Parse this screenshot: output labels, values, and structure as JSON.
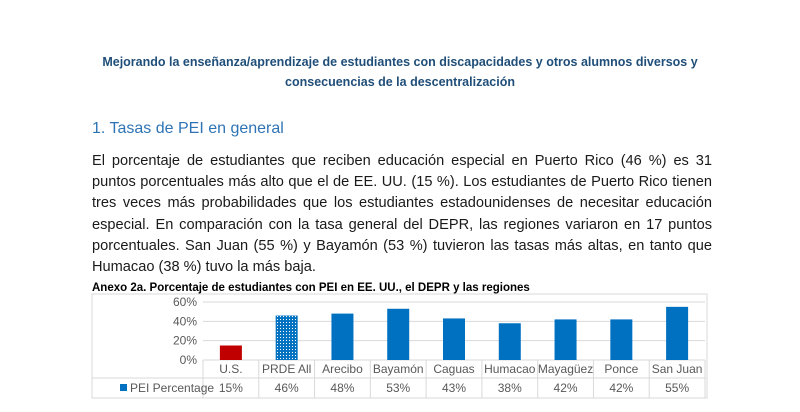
{
  "header": {
    "line1": "Mejorando la enseñanza/aprendizaje de estudiantes con discapacidades y otros alumnos diversos y",
    "line2": "consecuencias de la descentralización"
  },
  "section": {
    "title": "1. Tasas de PEI en general"
  },
  "paragraph": "El porcentaje de estudiantes que reciben educación especial en Puerto Rico (46 %) es 31 puntos porcentuales más alto que el de EE. UU. (15 %). Los estudiantes de Puerto Rico tienen tres veces más probabilidades que los estudiantes estadounidenses de necesitar educación especial. En comparación con la tasa general del DEPR, las regiones variaron en 17 puntos porcentuales. San Juan (55 %) y Bayamón (53 %) tuvieron las tasas más altas, en tanto que Humacao (38 %) tuvo la más baja.",
  "exhibit": {
    "title": "Anexo 2a. Porcentaje de estudiantes con PEI en EE. UU., el DEPR y las regiones"
  },
  "colors": {
    "us": "#c00000",
    "prde": "#0070c0",
    "regions": "#0070c0",
    "grid": "#d9d9d9",
    "text": "#595959"
  },
  "chart_data": {
    "type": "bar",
    "categories": [
      "U.S.",
      "PRDE All",
      "Arecibo",
      "Bayamón",
      "Caguas",
      "Humacao",
      "Mayagüez",
      "Ponce",
      "San Juan"
    ],
    "series": [
      {
        "name": "PEI Percentage",
        "values": [
          15,
          46,
          48,
          53,
          43,
          38,
          42,
          42,
          55
        ]
      }
    ],
    "data_labels": [
      "15%",
      "46%",
      "48%",
      "53%",
      "43%",
      "38%",
      "42%",
      "42%",
      "55%"
    ],
    "y_ticks": [
      "0%",
      "20%",
      "40%",
      "60%"
    ],
    "y_tick_values": [
      0,
      20,
      40,
      60
    ],
    "ylim": [
      0,
      60
    ],
    "grid": true,
    "legend": "data-table-bottom"
  }
}
